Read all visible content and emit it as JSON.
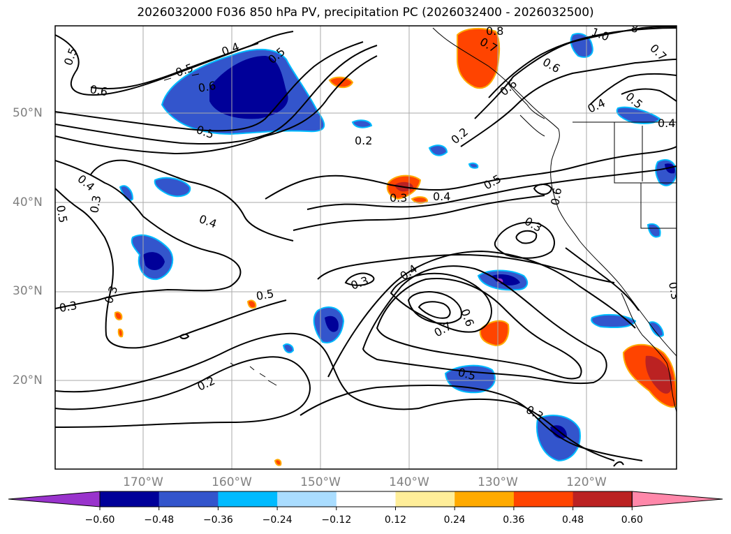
{
  "title": "2026032000 F036 850 hPa PV, precipitation PC (2026032400 - 2026032500)",
  "axes": {
    "lat_labels": [
      "50°N",
      "40°N",
      "30°N",
      "20°N"
    ],
    "lon_labels": [
      "170°W",
      "160°W",
      "150°W",
      "140°W",
      "130°W",
      "120°W"
    ]
  },
  "contour_labels": [
    "0.5",
    "0.6",
    "0.5",
    "0.2",
    "0.2",
    "0.4",
    "0.3",
    "0.4",
    "0.5",
    "0.3",
    "0.4",
    "0.3",
    "0.3",
    "0.5",
    "0.3",
    "0.4",
    "0.7",
    "0.6",
    "0.5",
    "0.3",
    "0.2",
    "0.6",
    "0.3",
    "0.5",
    "0.4",
    "0.5",
    "0.7",
    "0.6",
    "0.7",
    "0.8",
    "1.0",
    "8",
    "0.4",
    "0.6",
    "0.5",
    "0.4",
    "0.5",
    "0.6",
    "0.3"
  ],
  "colorbar": {
    "colors": [
      "#9933cc",
      "#000099",
      "#3355cc",
      "#00bbff",
      "#aaddff",
      "#ffffff",
      "#ffee99",
      "#ffaa00",
      "#ff4400",
      "#bb2222",
      "#ff88aa"
    ],
    "tick_labels": [
      "−0.60",
      "−0.48",
      "−0.36",
      "−0.24",
      "−0.12",
      "0.12",
      "0.24",
      "0.36",
      "0.48",
      "0.60"
    ]
  },
  "colors": {
    "blue_dark": "#000099",
    "blue_mid": "#3355cc",
    "blue_light": "#00bbff",
    "blue_pale": "#aaddff",
    "orange": "#ff4400",
    "orange_light": "#ffaa00",
    "red_dark": "#bb2222",
    "pink": "#ff88aa",
    "purple": "#9933cc",
    "grid": "#aaaaaa",
    "coast": "#000000"
  }
}
